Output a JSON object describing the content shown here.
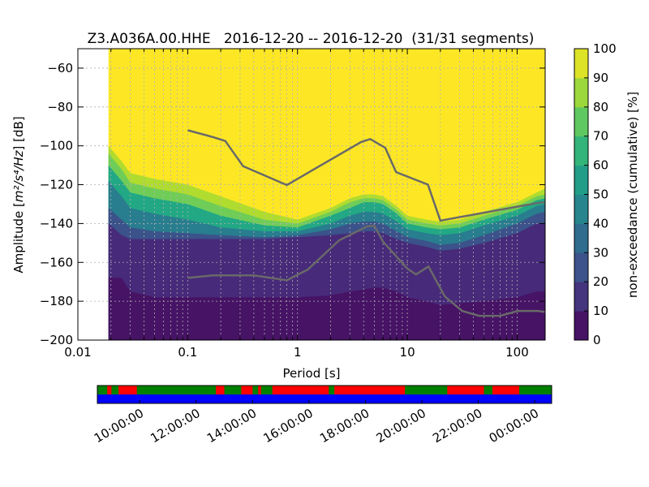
{
  "chart_data": {
    "type": "heatmap",
    "title": "Z3.A036A.00.HHE   2016-12-20 -- 2016-12-20  (31/31 segments)",
    "xlabel": "Period [s]",
    "ylabel_prefix": "Amplitude [",
    "ylabel_math": "m²/s⁴/Hz",
    "ylabel_suffix": "] [dB]",
    "x_scale": "log",
    "xlim": [
      0.01,
      180
    ],
    "ylim": [
      -200,
      -50
    ],
    "xticks": [
      {
        "value": 0.01,
        "label": "0.01"
      },
      {
        "value": 0.1,
        "label": "0.1"
      },
      {
        "value": 1,
        "label": "1"
      },
      {
        "value": 10,
        "label": "10"
      },
      {
        "value": 100,
        "label": "100"
      }
    ],
    "yticks": [
      -60,
      -80,
      -100,
      -120,
      -140,
      -160,
      -180,
      -200
    ],
    "grid": true,
    "colormap": "viridis",
    "colorbar": {
      "label": "non-exceedance (cumulative) [%]",
      "range": [
        0,
        100
      ],
      "ticks": [
        0,
        10,
        20,
        30,
        40,
        50,
        60,
        70,
        80,
        90,
        100
      ]
    },
    "data_start_period": 0.019,
    "percentile_bands": {
      "period": [
        0.019,
        0.025,
        0.03,
        0.05,
        0.1,
        0.2,
        0.5,
        1,
        2,
        3,
        4,
        5,
        6,
        8,
        10,
        15,
        20,
        30,
        50,
        100,
        150,
        180
      ],
      "p10": [
        -168,
        -168,
        -175,
        -178,
        -178,
        -178,
        -178,
        -178,
        -177,
        -175,
        -174,
        -173,
        -173,
        -175,
        -178,
        -180,
        -182,
        -181,
        -180,
        -178,
        -175,
        -175
      ],
      "p20": [
        -140,
        -146,
        -148,
        -148,
        -148,
        -148,
        -148,
        -147,
        -146,
        -145,
        -144,
        -144,
        -145,
        -148,
        -150,
        -152,
        -154,
        -153,
        -150,
        -145,
        -140,
        -140
      ],
      "p30": [
        -132,
        -138,
        -142,
        -144,
        -145,
        -146,
        -147,
        -146,
        -143,
        -140,
        -139,
        -139,
        -140,
        -144,
        -147,
        -149,
        -151,
        -150,
        -146,
        -140,
        -135,
        -134
      ],
      "p50": [
        -118,
        -126,
        -132,
        -135,
        -138,
        -142,
        -144,
        -144,
        -140,
        -136,
        -134,
        -134,
        -135,
        -139,
        -143,
        -145,
        -146,
        -145,
        -141,
        -136,
        -131,
        -130
      ],
      "p70": [
        -110,
        -118,
        -124,
        -127,
        -130,
        -136,
        -141,
        -142,
        -136,
        -132,
        -129,
        -129,
        -130,
        -135,
        -140,
        -142,
        -143,
        -142,
        -138,
        -133,
        -128,
        -127
      ],
      "p90": [
        -104,
        -112,
        -119,
        -122,
        -125,
        -131,
        -138,
        -140,
        -134,
        -129,
        -127,
        -127,
        -128,
        -133,
        -138,
        -140,
        -141,
        -140,
        -136,
        -131,
        -126,
        -125
      ],
      "p100": [
        -100,
        -108,
        -114,
        -117,
        -120,
        -126,
        -134,
        -138,
        -132,
        -127,
        -125,
        -125,
        -126,
        -131,
        -136,
        -138,
        -139,
        -138,
        -134,
        -129,
        -124,
        -122
      ]
    },
    "noise_models": [
      {
        "period": [
          0.1,
          0.17,
          0.22,
          0.32,
          0.8,
          3.8,
          4.6,
          6.3,
          7.9,
          15.4,
          20,
          150,
          180
        ],
        "values": [
          -92,
          -95.5,
          -97.5,
          -110.5,
          -120.2,
          -98,
          -96.5,
          -101,
          -113.5,
          -120,
          -138.5,
          -129.5,
          -129
        ]
      },
      {
        "period": [
          0.1,
          0.17,
          0.4,
          0.8,
          1.24,
          2.4,
          4.3,
          5.0,
          6.0,
          10,
          12,
          15.6,
          21.9,
          31.6,
          45,
          70,
          101,
          154,
          178
        ],
        "values": [
          -168,
          -166.7,
          -166.7,
          -169.2,
          -163.7,
          -148.6,
          -141.5,
          -141.1,
          -149.3,
          -163.2,
          -166.2,
          -162.1,
          -177.5,
          -185,
          -187.5,
          -187.5,
          -185,
          -185,
          -185.5
        ]
      }
    ],
    "timeline": {
      "tick_labels": [
        "10:00:00",
        "12:00:00",
        "14:00:00",
        "16:00:00",
        "18:00:00",
        "20:00:00",
        "22:00:00",
        "00:00:00"
      ],
      "start_hour": 8.5,
      "end_hour": 24.6,
      "upper_color": "#008000",
      "lower_color": "#0000ff",
      "red_color": "#ff0000",
      "red_segments": [
        [
          8.85,
          9.0
        ],
        [
          9.25,
          9.9
        ],
        [
          12.7,
          13.0
        ],
        [
          13.6,
          14.0
        ],
        [
          14.2,
          14.3
        ],
        [
          14.7,
          16.7
        ],
        [
          16.9,
          19.4
        ],
        [
          20.9,
          22.2
        ],
        [
          22.5,
          23.45
        ]
      ]
    },
    "colors": {
      "noise_model_line": "#696969",
      "grid": "#b0b0b0"
    }
  }
}
